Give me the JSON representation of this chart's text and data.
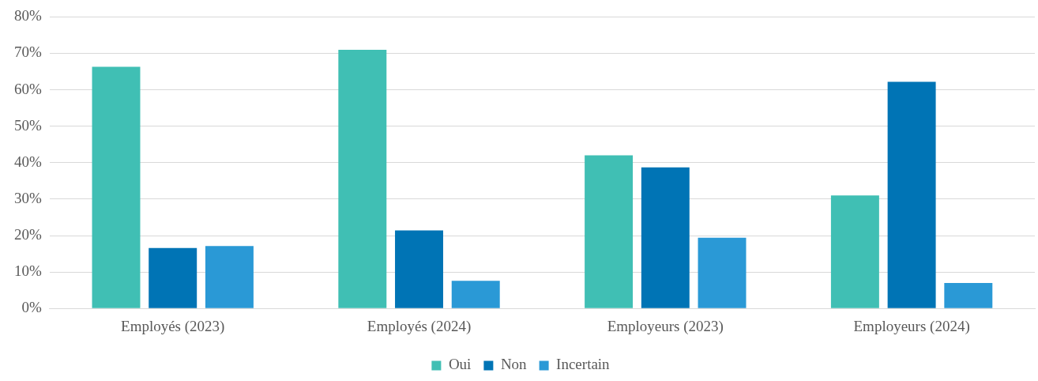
{
  "chart_data": {
    "type": "bar",
    "categories": [
      "Employés (2023)",
      "Employés (2024)",
      "Employeurs (2023)",
      "Employeurs (2024)"
    ],
    "series": [
      {
        "name": "Oui",
        "color": "#40bfb4",
        "values": [
          66.3,
          71.0,
          42.0,
          31.0
        ]
      },
      {
        "name": "Non",
        "color": "#0074b5",
        "values": [
          16.6,
          21.4,
          38.7,
          62.2
        ]
      },
      {
        "name": "Incertain",
        "color": "#2a99d6",
        "values": [
          17.1,
          7.6,
          19.4,
          7.0
        ]
      }
    ],
    "ylim": [
      0,
      80
    ],
    "yticks": [
      {
        "value": 0,
        "label": "0%"
      },
      {
        "value": 10,
        "label": "10%"
      },
      {
        "value": 20,
        "label": "20%"
      },
      {
        "value": 30,
        "label": "30%"
      },
      {
        "value": 40,
        "label": "40%"
      },
      {
        "value": 50,
        "label": "50%"
      },
      {
        "value": 60,
        "label": "60%"
      },
      {
        "value": 70,
        "label": "70%"
      },
      {
        "value": 80,
        "label": "80%"
      }
    ],
    "grid": "y",
    "legend": "bottom"
  }
}
